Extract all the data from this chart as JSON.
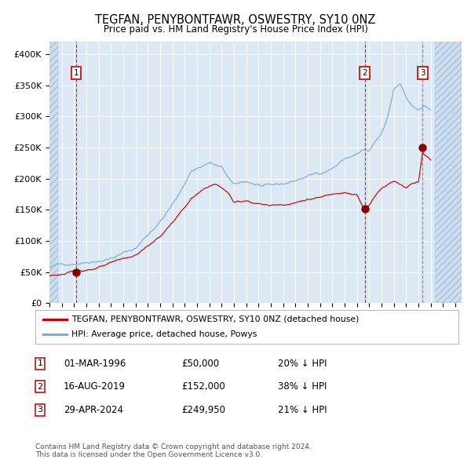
{
  "title": "TEGFAN, PENYBONTFAWR, OSWESTRY, SY10 0NZ",
  "subtitle": "Price paid vs. HM Land Registry's House Price Index (HPI)",
  "xlim": [
    1994.0,
    2027.5
  ],
  "ylim": [
    0,
    420000
  ],
  "yticks": [
    0,
    50000,
    100000,
    150000,
    200000,
    250000,
    300000,
    350000,
    400000
  ],
  "ytick_labels": [
    "£0",
    "£50K",
    "£100K",
    "£150K",
    "£200K",
    "£250K",
    "£300K",
    "£350K",
    "£400K"
  ],
  "xticks": [
    1994,
    1995,
    1996,
    1997,
    1998,
    1999,
    2000,
    2001,
    2002,
    2003,
    2004,
    2005,
    2006,
    2007,
    2008,
    2009,
    2010,
    2011,
    2012,
    2013,
    2014,
    2015,
    2016,
    2017,
    2018,
    2019,
    2020,
    2021,
    2022,
    2023,
    2024,
    2025,
    2026,
    2027
  ],
  "sale_dates": [
    1996.17,
    2019.62,
    2024.33
  ],
  "sale_prices": [
    50000,
    152000,
    249950
  ],
  "vline1_x": 1996.17,
  "vline2_x": 2019.62,
  "vline3_x": 2024.33,
  "legend_line1": "TEGFAN, PENYBONTFAWR, OSWESTRY, SY10 0NZ (detached house)",
  "legend_line2": "HPI: Average price, detached house, Powys",
  "table_rows": [
    [
      "1",
      "01-MAR-1996",
      "£50,000",
      "20% ↓ HPI"
    ],
    [
      "2",
      "16-AUG-2019",
      "£152,000",
      "38% ↓ HPI"
    ],
    [
      "3",
      "29-APR-2024",
      "£249,950",
      "21% ↓ HPI"
    ]
  ],
  "footer": "Contains HM Land Registry data © Crown copyright and database right 2024.\nThis data is licensed under the Open Government Licence v3.0.",
  "bg_color": "#dce9f5",
  "red_line_color": "#cc0000",
  "blue_line_color": "#7aadd4",
  "sale_dot_color": "#880000",
  "hatch_left_end": 1994.7,
  "hatch_right_start": 2025.3,
  "data_start": 1994.0,
  "data_end": 2027.5
}
